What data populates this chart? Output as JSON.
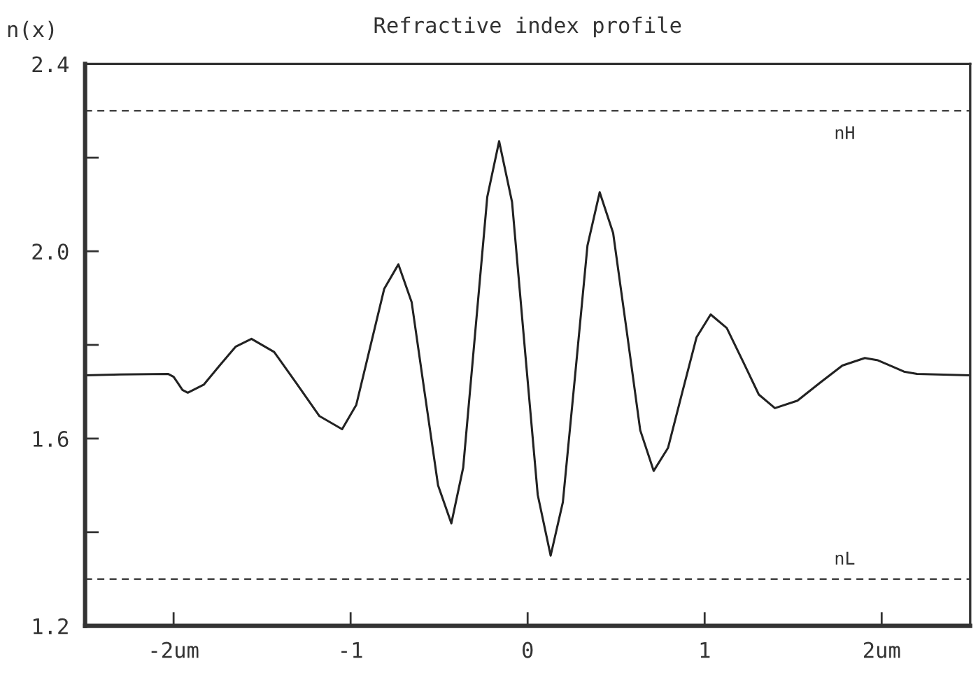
{
  "chart_data": {
    "type": "line",
    "title": "Refractive index profile",
    "ylabel": "n(x)",
    "x": [
      -2.5,
      -2.3,
      -2.03,
      -2.0,
      -1.975,
      -1.95,
      -1.92,
      -1.83,
      -1.74,
      -1.65,
      -1.56,
      -1.432,
      -1.304,
      -1.176,
      -1.048,
      -0.968,
      -0.889,
      -0.81,
      -0.73,
      -0.655,
      -0.581,
      -0.506,
      -0.431,
      -0.364,
      -0.296,
      -0.228,
      -0.161,
      -0.088,
      -0.016,
      0.057,
      0.13,
      0.199,
      0.269,
      0.338,
      0.407,
      0.483,
      0.56,
      0.636,
      0.712,
      0.793,
      0.873,
      0.954,
      1.034,
      1.125,
      1.216,
      1.306,
      1.397,
      1.524,
      1.651,
      1.778,
      1.905,
      1.979,
      2.053,
      2.126,
      2.2,
      2.5
    ],
    "series": [
      {
        "color": "#222222",
        "values": [
          1.735,
          1.737,
          1.738,
          1.732,
          1.718,
          1.704,
          1.698,
          1.715,
          1.756,
          1.796,
          1.813,
          1.785,
          1.717,
          1.648,
          1.62,
          1.672,
          1.796,
          1.92,
          1.972,
          1.891,
          1.696,
          1.5,
          1.419,
          1.538,
          1.827,
          2.116,
          2.235,
          2.105,
          1.793,
          1.48,
          1.35,
          1.464,
          1.738,
          2.012,
          2.126,
          2.039,
          1.829,
          1.618,
          1.531,
          1.58,
          1.698,
          1.816,
          1.865,
          1.836,
          1.765,
          1.694,
          1.665,
          1.681,
          1.719,
          1.756,
          1.772,
          1.767,
          1.755,
          1.743,
          1.738,
          1.735
        ]
      }
    ],
    "xlim": [
      -2.5,
      2.5
    ],
    "ylim": [
      1.2,
      2.4
    ],
    "xticks": [
      {
        "value": -2,
        "label": "-2um"
      },
      {
        "value": -1,
        "label": "-1"
      },
      0,
      1,
      {
        "value": 2,
        "label": "2um"
      }
    ],
    "yticks": [
      1.2,
      {
        "value": 1.4,
        "label": null
      },
      1.6,
      {
        "value": 1.8,
        "label": null
      },
      {
        "value": 2.0,
        "label": "2.0"
      },
      {
        "value": 2.2,
        "label": null
      },
      2.4
    ],
    "ref_lines": [
      {
        "axis": "y",
        "value": 2.3,
        "label": "nH",
        "color": "#444444",
        "line_style": "dashed"
      },
      {
        "axis": "y",
        "value": 1.3,
        "label": "nL",
        "color": "#444444",
        "line_style": "dashed"
      }
    ],
    "grid": false,
    "legend": false,
    "marker": "none",
    "line_style": "solid"
  }
}
